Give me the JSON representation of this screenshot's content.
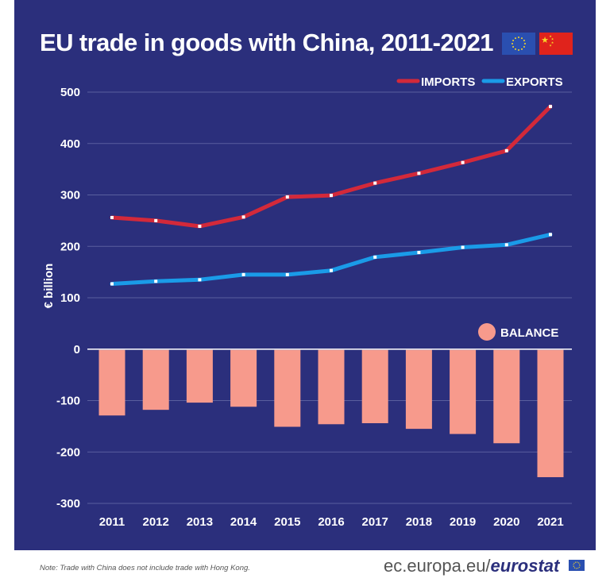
{
  "title": "EU trade in goods with China, 2011-2021",
  "colors": {
    "background": "#2b2f7c",
    "imports": "#d3293a",
    "exports": "#1a9be8",
    "balance": "#f79a8c",
    "grid": "#5a5f9e"
  },
  "icons": [
    "eu-flag-icon",
    "china-flag-icon",
    "eurostat-flag-icon"
  ],
  "footer": {
    "note": "Note: Trade with China does not include trade with Hong Kong.",
    "brand_prefix": "ec.europa.eu/",
    "brand_name": "eurostat"
  },
  "chart_data": {
    "type": "line",
    "title": "EU trade in goods with China, 2011-2021",
    "ylabel": "€ billion",
    "xlabel": "",
    "ylim": [
      -300,
      500
    ],
    "yticks": [
      500,
      400,
      300,
      200,
      100,
      0,
      -100,
      -200,
      -300
    ],
    "grid": true,
    "legend": "top-right",
    "categories": [
      "2011",
      "2012",
      "2013",
      "2014",
      "2015",
      "2016",
      "2017",
      "2018",
      "2019",
      "2020",
      "2021"
    ],
    "series": [
      {
        "name": "IMPORTS",
        "type": "line",
        "values": [
          256,
          250,
          239,
          257,
          296,
          299,
          323,
          342,
          363,
          386,
          472
        ]
      },
      {
        "name": "EXPORTS",
        "type": "line",
        "values": [
          127,
          132,
          135,
          145,
          145,
          153,
          179,
          188,
          198,
          203,
          223
        ]
      },
      {
        "name": "BALANCE",
        "type": "bar",
        "values": [
          -129,
          -118,
          -104,
          -112,
          -151,
          -146,
          -144,
          -155,
          -165,
          -183,
          -249
        ]
      }
    ]
  }
}
